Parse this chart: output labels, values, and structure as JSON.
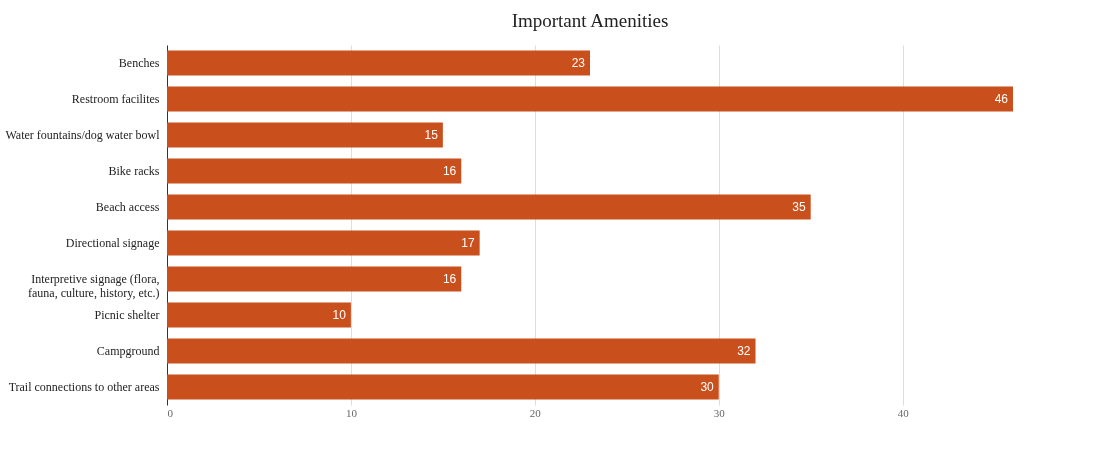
{
  "chart_data": {
    "type": "bar",
    "orientation": "horizontal",
    "title": "Important Amenities",
    "categories": [
      "Benches",
      "Restroom facilites",
      "Water fountains/dog water bowl",
      "Bike racks",
      "Beach access",
      "Directional signage",
      "Interpretive signage (flora, fauna, culture, history, etc.)",
      "Picnic shelter",
      "Campground",
      "Trail connections to other areas"
    ],
    "values": [
      23,
      46,
      15,
      16,
      35,
      17,
      16,
      10,
      32,
      30
    ],
    "color": "#c9501c",
    "xlim": [
      0,
      46
    ],
    "xticks": [
      0,
      10,
      20,
      30,
      40
    ],
    "grid": "x",
    "data_labels": true
  }
}
